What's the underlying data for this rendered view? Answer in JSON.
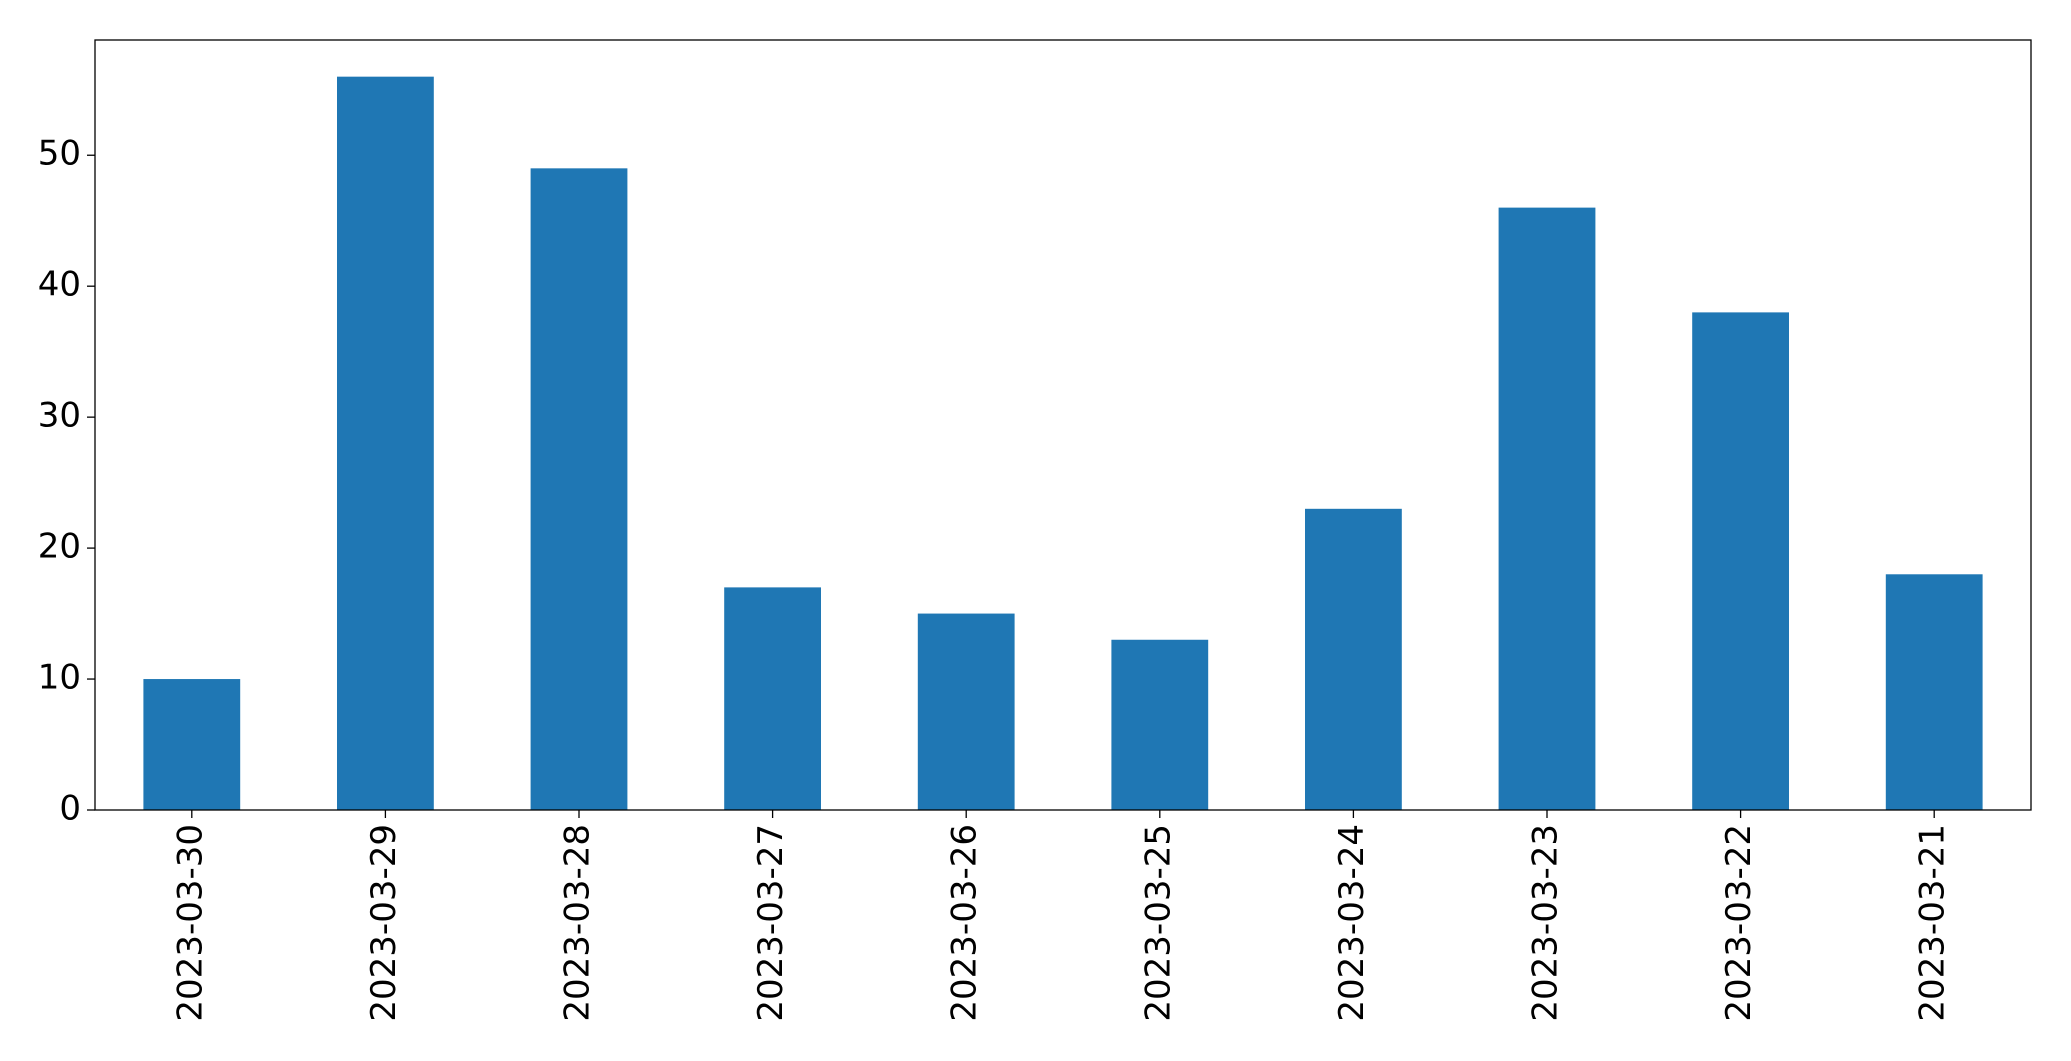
{
  "chart_data": {
    "type": "bar",
    "categories": [
      "2023-03-30",
      "2023-03-29",
      "2023-03-28",
      "2023-03-27",
      "2023-03-26",
      "2023-03-25",
      "2023-03-24",
      "2023-03-23",
      "2023-03-22",
      "2023-03-21"
    ],
    "values": [
      10,
      56,
      49,
      17,
      15,
      13,
      23,
      46,
      38,
      18
    ],
    "color": "#1f77b4",
    "ylim": [
      0,
      58.8
    ],
    "yticks": [
      0,
      10,
      20,
      30,
      40,
      50
    ],
    "grid": false
  }
}
